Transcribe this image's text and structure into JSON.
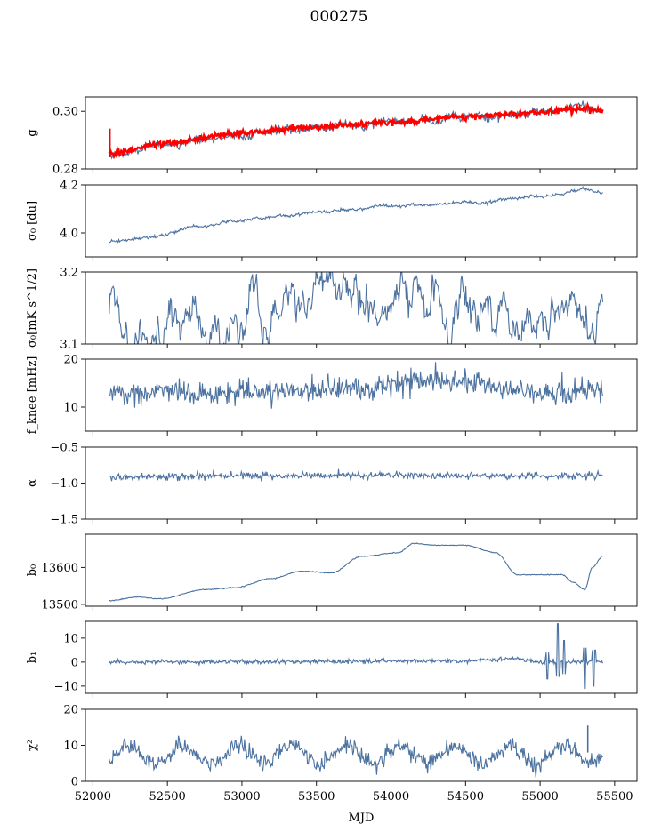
{
  "figure": {
    "title": "000275",
    "xlabel": "MJD",
    "xlim": [
      51950,
      55650
    ],
    "xticks": [
      52000,
      52500,
      53000,
      53500,
      54000,
      54500,
      55000,
      55500
    ],
    "xrange_data": [
      52110,
      55420
    ],
    "colors": {
      "series": "#4c72a0",
      "fit": "#ff0000"
    }
  },
  "chart_data": [
    {
      "type": "line",
      "ylabel": "g",
      "ylim": [
        0.28,
        0.305
      ],
      "yticks": [
        0.28,
        0.3
      ],
      "yticklabels": [
        "0.28",
        "0.30"
      ],
      "series": [
        {
          "kind": "walk",
          "start": 0.2848,
          "end": 0.3003,
          "noise": 0.0006,
          "walk": 0.00025,
          "seed": 11,
          "knots": [
            [
              52110,
              0.2848
            ],
            [
              52500,
              0.288
            ],
            [
              53000,
              0.2918
            ],
            [
              53500,
              0.294
            ],
            [
              54000,
              0.2958
            ],
            [
              54500,
              0.2975
            ],
            [
              55000,
              0.2995
            ],
            [
              55250,
              0.301
            ],
            [
              55420,
              0.3003
            ]
          ]
        },
        {
          "kind": "band",
          "start": 0.2855,
          "end": 0.3003,
          "noise": 0.0005,
          "seed": 7,
          "knots": [
            [
              52110,
              0.2855
            ],
            [
              52500,
              0.289
            ],
            [
              53000,
              0.2925
            ],
            [
              53500,
              0.2945
            ],
            [
              54000,
              0.2962
            ],
            [
              54500,
              0.298
            ],
            [
              55000,
              0.2995
            ],
            [
              55300,
              0.3008
            ],
            [
              55420,
              0.3003
            ]
          ],
          "spike": {
            "x": 52115,
            "from": 0.284,
            "to": 0.294
          }
        }
      ]
    },
    {
      "type": "line",
      "ylabel": "σ₀ [du]",
      "ylim": [
        3.9,
        4.2
      ],
      "yticks": [
        4.0,
        4.2
      ],
      "yticklabels": [
        "4.0",
        "4.2"
      ],
      "series": [
        {
          "kind": "walk",
          "noise": 0.003,
          "walk": 0.0012,
          "seed": 3,
          "knots": [
            [
              52110,
              3.96
            ],
            [
              52300,
              3.975
            ],
            [
              52700,
              4.02
            ],
            [
              53000,
              4.05
            ],
            [
              53500,
              4.085
            ],
            [
              54000,
              4.11
            ],
            [
              54500,
              4.125
            ],
            [
              55000,
              4.15
            ],
            [
              55300,
              4.175
            ],
            [
              55420,
              4.16
            ]
          ]
        }
      ]
    },
    {
      "type": "line",
      "ylabel": "σ₀[mK s^1/2]",
      "ylim": [
        3.1,
        3.2
      ],
      "yticks": [
        3.1,
        3.2
      ],
      "yticklabels": [
        "3.1",
        "3.2"
      ],
      "series": [
        {
          "kind": "ou",
          "mean": 3.15,
          "sigma": 0.012,
          "theta": 0.08,
          "seed": 5,
          "knots": [
            [
              52110,
              3.15
            ],
            [
              55420,
              3.148
            ]
          ]
        }
      ]
    },
    {
      "type": "line",
      "ylabel": "f_knee [mHz]",
      "ylim": [
        5,
        20
      ],
      "yticks": [
        10,
        20
      ],
      "yticklabels": [
        "10",
        "20"
      ],
      "series": [
        {
          "kind": "noise",
          "noise": 1.2,
          "seed": 9,
          "knots": [
            [
              52110,
              13
            ],
            [
              52700,
              12.8
            ],
            [
              53300,
              13.5
            ],
            [
              53800,
              14
            ],
            [
              54200,
              15.5
            ],
            [
              54500,
              15.2
            ],
            [
              54900,
              13.2
            ],
            [
              55150,
              12.6
            ],
            [
              55420,
              13.4
            ]
          ]
        }
      ]
    },
    {
      "type": "line",
      "ylabel": "α",
      "ylim": [
        -1.5,
        -0.5
      ],
      "yticks": [
        -1.5,
        -1.0,
        -0.5
      ],
      "yticklabels": [
        "−1.5",
        "−1.0",
        "−0.5"
      ],
      "series": [
        {
          "kind": "noise",
          "noise": 0.025,
          "seed": 13,
          "knots": [
            [
              52110,
              -0.92
            ],
            [
              53000,
              -0.9
            ],
            [
              54000,
              -0.89
            ],
            [
              55420,
              -0.9
            ]
          ]
        }
      ]
    },
    {
      "type": "line",
      "ylabel": "b₀",
      "ylim": [
        13495,
        13690
      ],
      "yticks": [
        13500,
        13600
      ],
      "yticklabels": [
        "13500",
        "13600"
      ],
      "series": [
        {
          "kind": "smooth",
          "noise": 0.6,
          "seed": 17,
          "knots": [
            [
              52110,
              13510
            ],
            [
              52300,
              13520
            ],
            [
              52450,
              13515
            ],
            [
              52750,
              13540
            ],
            [
              52950,
              13545
            ],
            [
              53200,
              13570
            ],
            [
              53400,
              13590
            ],
            [
              53600,
              13585
            ],
            [
              53800,
              13630
            ],
            [
              54050,
              13640
            ],
            [
              54150,
              13665
            ],
            [
              54300,
              13660
            ],
            [
              54500,
              13660
            ],
            [
              54700,
              13640
            ],
            [
              54850,
              13580
            ],
            [
              54950,
              13580
            ],
            [
              55150,
              13580
            ],
            [
              55220,
              13560
            ],
            [
              55300,
              13540
            ],
            [
              55350,
              13600
            ],
            [
              55420,
              13630
            ]
          ]
        }
      ]
    },
    {
      "type": "line",
      "ylabel": "b₁",
      "ylim": [
        -13,
        17
      ],
      "yticks": [
        -10,
        0,
        10
      ],
      "yticklabels": [
        "−10",
        "0",
        "10"
      ],
      "series": [
        {
          "kind": "noise",
          "noise": 0.45,
          "seed": 19,
          "knots": [
            [
              52110,
              0
            ],
            [
              54500,
              0.5
            ],
            [
              54800,
              1.5
            ],
            [
              55000,
              0.2
            ],
            [
              55420,
              0
            ]
          ],
          "bursts": [
            [
              55050,
              -7,
              4
            ],
            [
              55120,
              16,
              -6
            ],
            [
              55160,
              9,
              -5
            ],
            [
              55300,
              -11,
              6
            ],
            [
              55360,
              -10,
              5
            ]
          ]
        }
      ]
    },
    {
      "type": "line",
      "ylabel": "χ²",
      "ylim": [
        0,
        20
      ],
      "yticks": [
        0,
        10,
        20
      ],
      "yticklabels": [
        "0",
        "10",
        "20"
      ],
      "series": [
        {
          "kind": "periodic",
          "mean": 7.5,
          "amp": 2.5,
          "period": 365,
          "noise": 1.2,
          "seed": 23,
          "knots": [
            [
              52110,
              7
            ],
            [
              55420,
              8
            ]
          ],
          "spike": {
            "x": 55320,
            "from": 8,
            "to": 15.5
          }
        }
      ]
    }
  ]
}
